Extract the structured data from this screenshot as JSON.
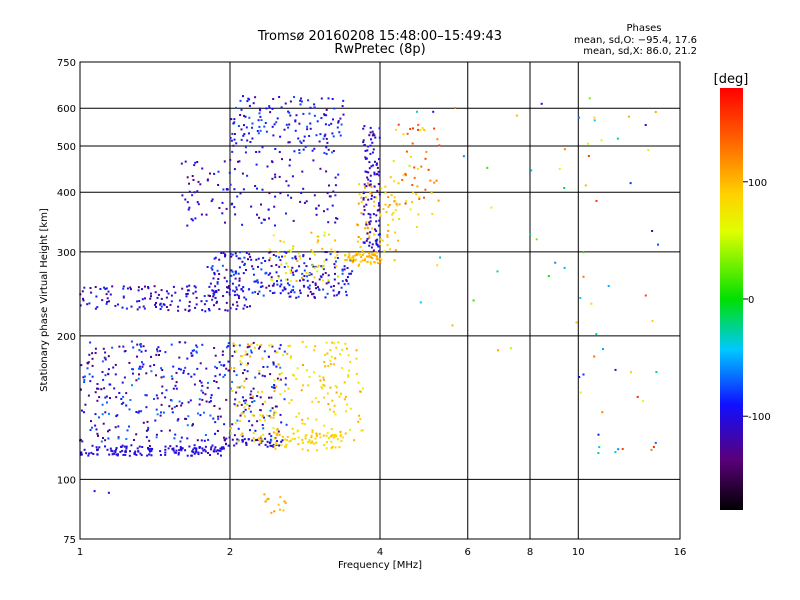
{
  "chart_data": {
    "type": "scatter",
    "title": "Tromsø 20160208 15:48:00–15:49:43",
    "subtitle": "RwPretec (8p)",
    "xlabel": "Frequency [MHz]",
    "ylabel": "Stationary phase Virtual Height [km]",
    "x_scale": "log",
    "y_scale": "log",
    "xlim": [
      1,
      16
    ],
    "ylim": [
      75,
      750
    ],
    "x_ticks": [
      1,
      2,
      4,
      6,
      8,
      10,
      16
    ],
    "x_tick_labels": [
      "1",
      "2",
      "4",
      "6",
      "8",
      "10",
      "16"
    ],
    "y_ticks": [
      75,
      100,
      200,
      300,
      400,
      500,
      600,
      750
    ],
    "y_tick_labels": [
      "75",
      "100",
      "200",
      "300",
      "400",
      "500",
      "600",
      "750"
    ],
    "grid": true,
    "stats": {
      "title": "Phases",
      "line_o": "mean, sd,O: −95.4, 17.6",
      "line_x": "mean, sd,X:  86.0, 21.2"
    },
    "colorbar": {
      "label": "[deg]",
      "range": [
        -180,
        180
      ],
      "ticks": [
        100,
        0,
        -100
      ],
      "tick_labels": [
        "100",
        "0",
        "-100"
      ]
    },
    "clusters": [
      {
        "f": [
          1.0,
          1.95
        ],
        "h": [
          112,
          118
        ],
        "phase": [
          -110,
          -95
        ],
        "n": 150
      },
      {
        "f": [
          1.95,
          2.55
        ],
        "h": [
          117,
          122
        ],
        "phase": [
          -110,
          -95
        ],
        "n": 40
      },
      {
        "f": [
          1.0,
          2.6
        ],
        "h": [
          120,
          195
        ],
        "phase": [
          -140,
          -60
        ],
        "n": 420
      },
      {
        "f": [
          2.0,
          3.7
        ],
        "h": [
          120,
          195
        ],
        "phase": [
          60,
          110
        ],
        "n": 200
      },
      {
        "f": [
          2.2,
          3.4
        ],
        "h": [
          115,
          125
        ],
        "phase": [
          75,
          100
        ],
        "n": 70
      },
      {
        "f": [
          1.0,
          2.2
        ],
        "h": [
          225,
          255
        ],
        "phase": [
          -130,
          -80
        ],
        "n": 150
      },
      {
        "f": [
          1.8,
          3.55
        ],
        "h": [
          240,
          300
        ],
        "phase": [
          -130,
          -70
        ],
        "n": 260
      },
      {
        "f": [
          2.4,
          3.3
        ],
        "h": [
          260,
          330
        ],
        "phase": [
          40,
          110
        ],
        "n": 60
      },
      {
        "f": [
          3.4,
          3.95
        ],
        "h": [
          285,
          300
        ],
        "phase": [
          85,
          110
        ],
        "n": 50
      },
      {
        "f": [
          3.6,
          4.4
        ],
        "h": [
          280,
          420
        ],
        "phase": [
          80,
          120
        ],
        "n": 90
      },
      {
        "f": [
          3.7,
          4.0
        ],
        "h": [
          300,
          560
        ],
        "phase": [
          -130,
          -85
        ],
        "n": 110
      },
      {
        "f": [
          2.0,
          3.4
        ],
        "h": [
          480,
          640
        ],
        "phase": [
          -120,
          -70
        ],
        "n": 160
      },
      {
        "f": [
          1.6,
          3.3
        ],
        "h": [
          340,
          470
        ],
        "phase": [
          -130,
          -80
        ],
        "n": 130
      },
      {
        "f": [
          4.2,
          5.3
        ],
        "h": [
          350,
          560
        ],
        "phase": [
          60,
          160
        ],
        "n": 50
      },
      {
        "f": [
          4.5,
          10.0
        ],
        "h": [
          180,
          620
        ],
        "phase": [
          -110,
          130
        ],
        "n": 30
      },
      {
        "f": [
          10.0,
          14.6
        ],
        "h": [
          110,
          640
        ],
        "phase": [
          -120,
          170
        ],
        "n": 45
      },
      {
        "f": [
          2.3,
          2.6
        ],
        "h": [
          85,
          95
        ],
        "phase": [
          95,
          120
        ],
        "n": 12
      },
      {
        "f": [
          1.05,
          1.15
        ],
        "h": [
          93,
          96
        ],
        "phase": [
          -100,
          -90
        ],
        "n": 2
      }
    ]
  }
}
